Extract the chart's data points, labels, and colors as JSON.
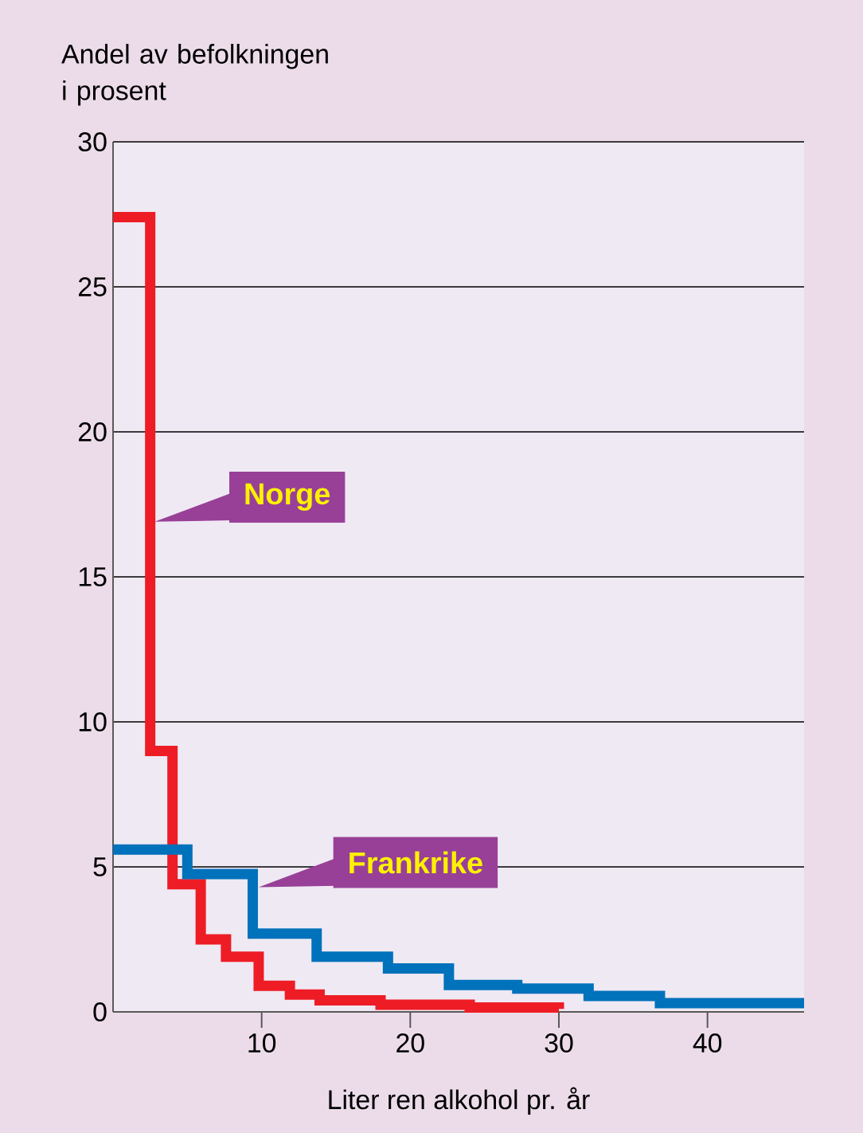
{
  "chart_data": {
    "type": "step",
    "ylabel": "Andel av befolkningen i prosent",
    "xlabel": "Liter ren alkohol pr. år",
    "xlim": [
      0,
      46.5
    ],
    "xticks": [
      10,
      20,
      30,
      40
    ],
    "ylim": [
      0,
      30
    ],
    "yticks": [
      0,
      5,
      10,
      15,
      20,
      25,
      30
    ],
    "grid": "y",
    "line_style": "solid",
    "series": [
      {
        "color": "#ee1c25",
        "x": [
          0,
          2.5,
          4,
          5.9,
          7.6,
          9.8,
          11.9,
          13.9,
          18,
          24,
          30
        ],
        "values": [
          27.4,
          9.0,
          4.4,
          2.5,
          1.9,
          0.9,
          0.6,
          0.4,
          0.25,
          0.15,
          0.1
        ]
      },
      {
        "color": "#0071bb",
        "x": [
          0,
          5,
          9.4,
          13.7,
          18.5,
          22.6,
          27.2,
          32,
          36.8,
          46.5
        ],
        "values": [
          5.6,
          4.75,
          2.7,
          1.9,
          1.5,
          0.93,
          0.8,
          0.55,
          0.3,
          0.3
        ]
      }
    ],
    "annotations": [
      {
        "text": "Norge",
        "x": 2.8,
        "y": 16.9
      },
      {
        "text": "Frankrike",
        "x": 9.8,
        "y": 4.3
      }
    ]
  }
}
